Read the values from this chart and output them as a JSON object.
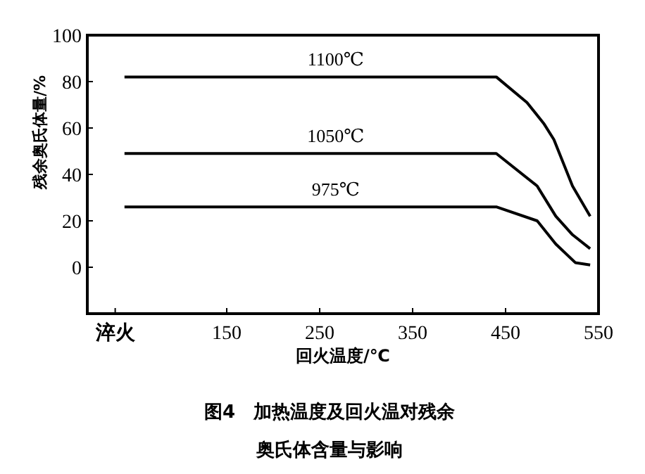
{
  "chart_data": {
    "type": "line",
    "title": "图4　加热温度及回火温对残余奥氏体含量与影响",
    "xlabel": "回火温度/℃",
    "ylabel": "残余奥氏体量/%",
    "xlim": [
      0,
      550
    ],
    "xticks": [
      {
        "value": 30,
        "label": "淬火"
      },
      150,
      250,
      350,
      450,
      550
    ],
    "ylim": [
      -20,
      100
    ],
    "yticks": [
      0,
      20,
      40,
      60,
      80,
      100
    ],
    "grid": false,
    "marker": "none",
    "line_style": "solid",
    "series": [
      {
        "name": "1100℃",
        "color": "#000000",
        "x": [
          40,
          440,
          473,
          491,
          502,
          522,
          541
        ],
        "values": [
          82,
          82,
          71,
          62,
          55,
          35,
          22
        ]
      },
      {
        "name": "1050℃",
        "color": "#000000",
        "x": [
          40,
          440,
          484,
          504,
          522,
          541
        ],
        "values": [
          49,
          49,
          35,
          22,
          14,
          8
        ]
      },
      {
        "name": "975℃",
        "color": "#000000",
        "x": [
          40,
          440,
          484,
          504,
          525,
          541
        ],
        "values": [
          26,
          26,
          20,
          10,
          2,
          1
        ]
      }
    ]
  }
}
